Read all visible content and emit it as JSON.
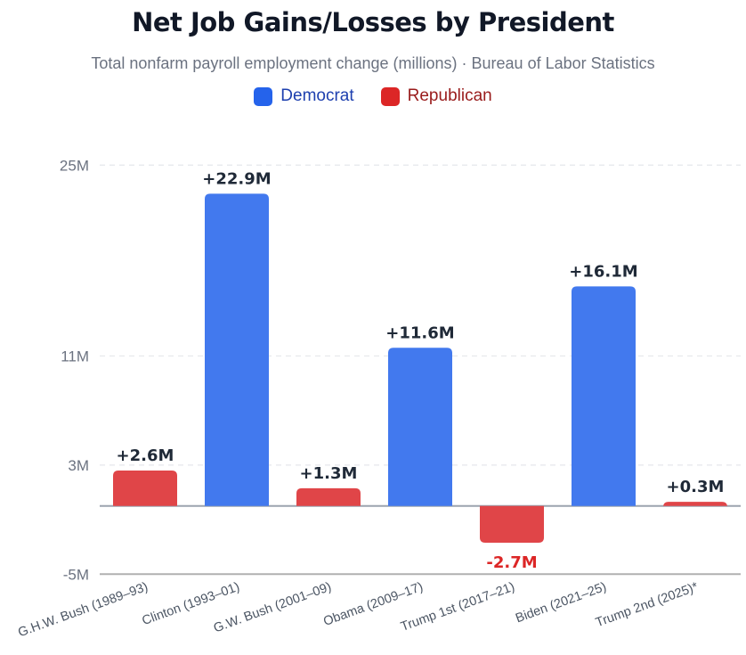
{
  "chart_data": {
    "type": "bar",
    "title": "Net Job Gains/Losses by President",
    "subtitle": "Total nonfarm payroll employment change (millions) · Bureau of Labor Statistics",
    "xlabel": "",
    "ylabel": "",
    "ylim": [
      -5,
      25
    ],
    "yticks": [
      25,
      11,
      3,
      -5
    ],
    "ytick_labels": [
      "25M",
      "11M",
      "3M",
      "-5M"
    ],
    "grid": true,
    "legend_position": "top-center",
    "legend": [
      {
        "name": "Democrat",
        "swatch": "#2563eb",
        "text_color": "#1e40af"
      },
      {
        "name": "Republican",
        "swatch": "#dc2626",
        "text_color": "#991b1b"
      }
    ],
    "categories": [
      "G.H.W. Bush (1989–93)",
      "Clinton (1993–01)",
      "G.W. Bush (2001–09)",
      "Obama (2009–17)",
      "Trump 1st (2017–21)",
      "Biden (2021–25)",
      "Trump 2nd (2025)*"
    ],
    "party": [
      "Republican",
      "Democrat",
      "Republican",
      "Democrat",
      "Republican",
      "Democrat",
      "Republican"
    ],
    "values": [
      2.6,
      22.9,
      1.3,
      11.6,
      -2.7,
      16.1,
      0.3
    ],
    "data_labels": [
      "+2.6M",
      "+22.9M",
      "+1.3M",
      "+11.6M",
      "-2.7M",
      "+16.1M",
      "+0.3M"
    ],
    "colors": {
      "Democrat": "#4279ee",
      "Republican": "#e04548",
      "negative_label": "#dc2626",
      "label": "#1f2937"
    }
  }
}
